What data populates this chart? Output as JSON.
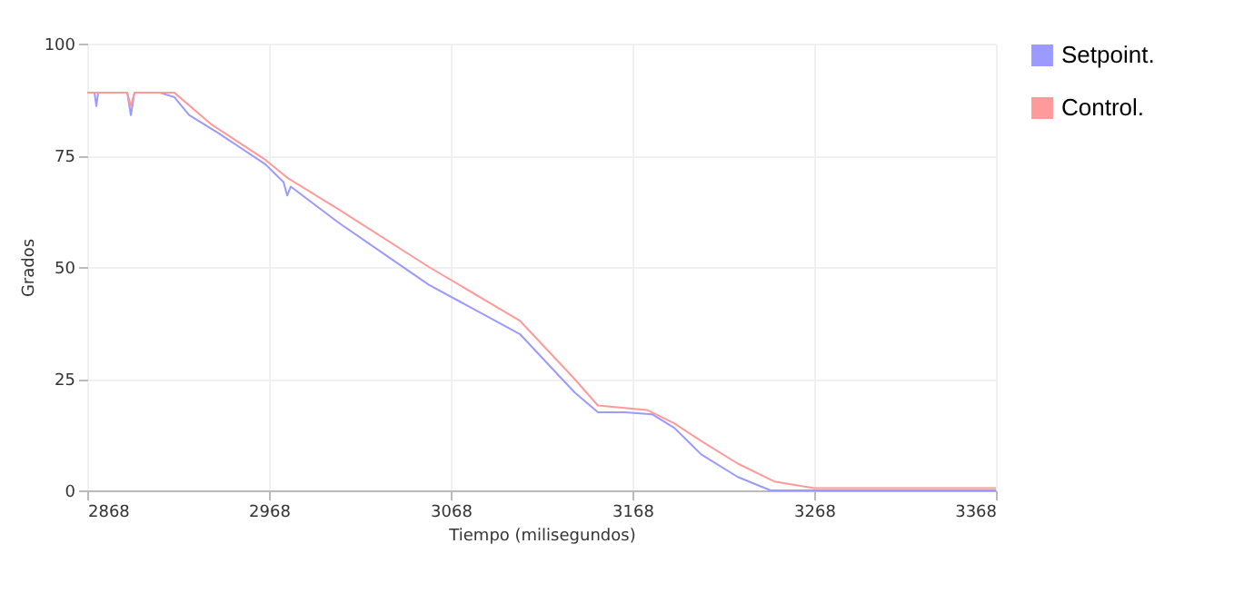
{
  "chart_data": {
    "type": "line",
    "xlabel": "Tiempo (milisegundos)",
    "ylabel": "Grados",
    "xlim": [
      2868,
      3368
    ],
    "ylim": [
      0,
      100
    ],
    "xticks": [
      2868,
      2968,
      3068,
      3168,
      3268,
      3368
    ],
    "yticks": [
      0,
      25,
      50,
      75,
      100
    ],
    "grid": true,
    "legend": "right",
    "marker": "none",
    "line_style": "solid",
    "series": [
      {
        "name": "Setpoint.",
        "color": "#9a9aff",
        "x": [
          2868,
          2872,
          2873,
          2874,
          2890,
          2892,
          2894,
          2908,
          2916,
          2924,
          2940,
          2966,
          2976,
          2978,
          2980,
          3006,
          3056,
          3106,
          3136,
          3149,
          3164,
          3179,
          3191,
          3206,
          3226,
          3244,
          3368
        ],
        "values": [
          89,
          89,
          86,
          89,
          89,
          84,
          89,
          89,
          88,
          84,
          80,
          73,
          69,
          66,
          68,
          60,
          46,
          35,
          22,
          17.5,
          17.5,
          17,
          14,
          8,
          3,
          0,
          0
        ]
      },
      {
        "name": "Control.",
        "color": "#ff9a9a",
        "x": [
          2868,
          2890,
          2892,
          2894,
          2916,
          2936,
          2966,
          2978,
          3006,
          3056,
          3106,
          3136,
          3149,
          3176,
          3191,
          3206,
          3226,
          3246,
          3268,
          3368
        ],
        "values": [
          89,
          89,
          86,
          89,
          89,
          82,
          74,
          70,
          63,
          50,
          38,
          25,
          19,
          18,
          15,
          11,
          6,
          2,
          0.5,
          0.5
        ]
      }
    ]
  }
}
